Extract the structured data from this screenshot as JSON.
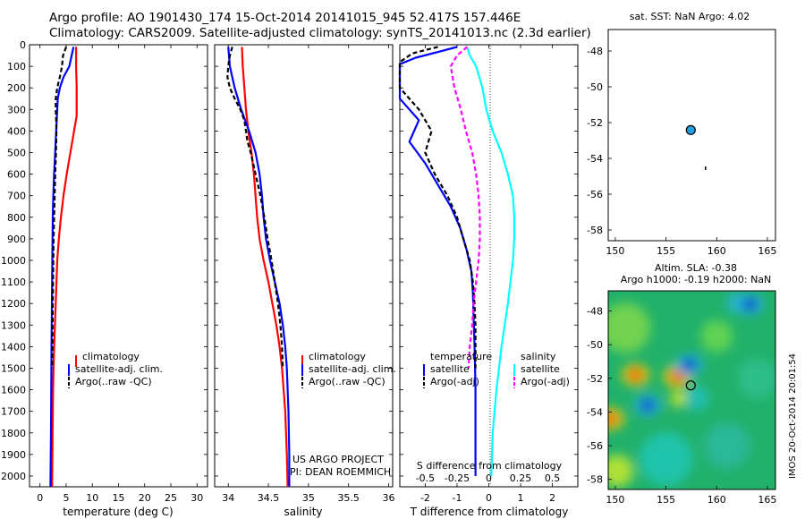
{
  "title_line1": "Argo profile: AO 1901430_174 15-Oct-2014 20141015_945 52.417S 157.446E",
  "title_line2": "Climatology: CARS2009. Satellite-adjusted climatology: synTS_20141013.nc (2.3d earlier)",
  "colors": {
    "climatology": "#ff0000",
    "satellite": "#0000ff",
    "argo": "#000000",
    "sat_diff": "#00ffff",
    "argo_diff": "#ff00ff"
  },
  "panels": {
    "temperature": {
      "xlabel": "temperature (deg C)",
      "legend": [
        "climatology",
        "satellite-adj. clim.",
        "Argo(..raw -QC)"
      ]
    },
    "salinity": {
      "xlabel": "salinity",
      "legend": [
        "climatology",
        "satellite-adj. clim.",
        "Argo(..raw -QC)"
      ],
      "annotation1": "US ARGO PROJECT",
      "annotation2": "PI: DEAN ROEMMICH"
    },
    "difference": {
      "top_label": "S difference from climatology",
      "xlabel": "T difference from climatology",
      "legend_temp_title": "temperature",
      "legend_sal_title": "salinity",
      "legend_items": [
        "satellite",
        "Argo(-adj)",
        "satellite",
        "Argo(-adj)"
      ]
    },
    "sst_map": {
      "title": "sat. SST: NaN Argo: 4.02"
    },
    "sla_map": {
      "title1": "Altim. SLA: -0.38",
      "title2": "Argo h1000: -0.19 h2000: NaN",
      "watermark": "IMOS 20-Oct-2014 20:01:54"
    }
  },
  "chart_data": [
    {
      "type": "line",
      "title": "",
      "xlabel": "temperature (deg C)",
      "ylabel": "",
      "xlim": [
        -2,
        32
      ],
      "ylim": [
        2050,
        0
      ],
      "y_reversed": true,
      "xticks": [
        0,
        5,
        10,
        15,
        20,
        25,
        30
      ],
      "yticks": [
        0,
        100,
        200,
        300,
        400,
        500,
        600,
        700,
        800,
        900,
        1000,
        1100,
        1200,
        1300,
        1400,
        1500,
        1600,
        1700,
        1800,
        1900,
        2000
      ],
      "series": [
        {
          "name": "climatology",
          "depth": [
            10,
            100,
            200,
            330,
            400,
            500,
            600,
            700,
            800,
            900,
            1000,
            1200,
            1400,
            1600,
            1800,
            2050
          ],
          "values": [
            6.9,
            6.9,
            7.0,
            7.0,
            6.5,
            5.8,
            5.1,
            4.5,
            4.0,
            3.6,
            3.3,
            3.0,
            2.7,
            2.5,
            2.4,
            2.3
          ]
        },
        {
          "name": "satellite-adj. clim.",
          "depth": [
            10,
            100,
            150,
            200,
            250,
            300,
            400,
            500,
            600,
            700,
            800,
            1000,
            1400,
            1800,
            2050
          ],
          "values": [
            6.4,
            5.6,
            4.5,
            3.8,
            3.4,
            3.3,
            3.1,
            2.9,
            2.7,
            2.55,
            2.45,
            2.35,
            2.2,
            2.1,
            2.0
          ]
        },
        {
          "name": "Argo(..raw -QC)",
          "depth": [
            10,
            50,
            100,
            150,
            200,
            250,
            300,
            350,
            400,
            500,
            600,
            700,
            800,
            900,
            1000,
            1100,
            1200,
            1300,
            1400,
            1500
          ],
          "values": [
            5.0,
            4.4,
            4.2,
            3.8,
            3.3,
            3.0,
            3.0,
            3.1,
            3.15,
            3.05,
            2.9,
            2.8,
            2.7,
            2.6,
            2.55,
            2.5,
            2.45,
            2.4,
            2.35,
            2.3
          ]
        }
      ]
    },
    {
      "type": "line",
      "title": "",
      "xlabel": "salinity",
      "ylabel": "",
      "xlim": [
        33.83,
        36.05
      ],
      "ylim": [
        2050,
        0
      ],
      "y_reversed": true,
      "xticks": [
        34,
        34.5,
        35,
        35.5,
        36
      ],
      "series": [
        {
          "name": "climatology",
          "depth": [
            10,
            100,
            200,
            300,
            400,
            500,
            600,
            700,
            800,
            900,
            1000,
            1100,
            1200,
            1300,
            1400,
            1500,
            1700,
            1900,
            2050
          ],
          "values": [
            34.17,
            34.18,
            34.2,
            34.22,
            34.25,
            34.29,
            34.32,
            34.34,
            34.36,
            34.39,
            34.44,
            34.5,
            34.55,
            34.6,
            34.64,
            34.67,
            34.71,
            34.73,
            34.74
          ]
        },
        {
          "name": "satellite-adj. clim.",
          "depth": [
            10,
            100,
            200,
            300,
            400,
            500,
            600,
            700,
            800,
            900,
            1000,
            1100,
            1200,
            1300,
            1400,
            1500,
            1600,
            1700,
            1900,
            2050
          ],
          "values": [
            34.0,
            34.02,
            34.08,
            34.16,
            34.26,
            34.34,
            34.39,
            34.42,
            34.44,
            34.47,
            34.52,
            34.58,
            34.64,
            34.68,
            34.71,
            34.73,
            34.74,
            34.75,
            34.76,
            34.76
          ]
        },
        {
          "name": "Argo(..raw -QC)",
          "depth": [
            10,
            50,
            100,
            150,
            200,
            250,
            300,
            350,
            400,
            450,
            500,
            550,
            600,
            700,
            800,
            900,
            1000,
            1100,
            1200,
            1300,
            1400,
            1500
          ],
          "values": [
            34.05,
            34.02,
            34.0,
            33.99,
            34.02,
            34.08,
            34.15,
            34.2,
            34.22,
            34.24,
            34.28,
            34.31,
            34.34,
            34.4,
            34.45,
            34.49,
            34.54,
            34.58,
            34.62,
            34.65,
            34.67,
            34.68
          ]
        }
      ]
    },
    {
      "type": "line",
      "title": "",
      "xlabel": "T difference from climatology",
      "top_label": "S difference from climatology",
      "xlim": [
        -2.8,
        2.8
      ],
      "ylim": [
        2050,
        0
      ],
      "y_reversed": true,
      "xticks": [
        -2,
        -1,
        0,
        1,
        2
      ],
      "xticks_salinity": [
        -0.5,
        -0.25,
        0,
        0.25,
        0.5
      ],
      "series": [
        {
          "name": "temperature satellite",
          "depth": [
            10,
            30,
            60,
            90,
            150,
            250,
            350,
            450,
            550,
            650,
            750,
            850,
            950,
            1050,
            1150,
            1250,
            1350,
            1450,
            1600,
            1800,
            2000
          ],
          "values": [
            -1.0,
            -1.5,
            -2.3,
            -2.8,
            -2.8,
            -2.8,
            -2.2,
            -2.5,
            -2.0,
            -1.6,
            -1.2,
            -0.9,
            -0.7,
            -0.55,
            -0.5,
            -0.48,
            -0.46,
            -0.44,
            -0.42,
            -0.42,
            -0.42
          ]
        },
        {
          "name": "temperature Argo(-adj)",
          "depth": [
            10,
            40,
            80,
            120,
            200,
            300,
            400,
            500,
            600,
            700,
            800,
            900,
            1000,
            1100,
            1200,
            1300,
            1400,
            1500
          ],
          "values": [
            -1.6,
            -2.4,
            -2.8,
            -2.8,
            -2.8,
            -2.2,
            -1.8,
            -2.0,
            -1.7,
            -1.3,
            -1.0,
            -0.8,
            -0.6,
            -0.5,
            -0.45,
            -0.42,
            -0.42,
            -0.42
          ]
        },
        {
          "name": "salinity satellite",
          "depth": [
            10,
            50,
            100,
            200,
            300,
            400,
            500,
            600,
            700,
            800,
            900,
            1000,
            1200,
            1400,
            1600,
            1800,
            2000
          ],
          "values": [
            -0.17,
            -0.15,
            -0.1,
            -0.05,
            -0.02,
            0.03,
            0.1,
            0.15,
            0.19,
            0.2,
            0.2,
            0.19,
            0.15,
            0.1,
            0.06,
            0.03,
            0.02
          ]
        },
        {
          "name": "salinity Argo(-adj)",
          "depth": [
            10,
            50,
            100,
            200,
            300,
            400,
            500,
            600,
            700,
            800,
            900,
            1000,
            1100,
            1200,
            1300,
            1400,
            1500
          ],
          "values": [
            -0.17,
            -0.25,
            -0.3,
            -0.27,
            -0.22,
            -0.18,
            -0.13,
            -0.1,
            -0.08,
            -0.07,
            -0.07,
            -0.08,
            -0.1,
            -0.12,
            -0.13,
            -0.15,
            -0.16
          ]
        }
      ]
    },
    {
      "type": "scatter",
      "title": "sat. SST: NaN Argo: 4.02",
      "xlim": [
        149.3,
        165.8
      ],
      "ylim": [
        -58.6,
        -46.8
      ],
      "xticks": [
        150,
        155,
        160,
        165
      ],
      "yticks": [
        -48,
        -50,
        -52,
        -54,
        -56,
        -58
      ],
      "points": [
        {
          "name": "Argo position",
          "lon": 157.446,
          "lat": -52.417
        }
      ],
      "track": [
        {
          "lon": 158.9,
          "lat": -54.45
        },
        {
          "lon": 158.9,
          "lat": -54.65
        }
      ]
    },
    {
      "type": "heatmap",
      "title": "Altim. SLA: -0.38",
      "subtitle": "Argo h1000: -0.19 h2000: NaN",
      "xlim": [
        149.3,
        165.8
      ],
      "ylim": [
        -58.6,
        -46.8
      ],
      "xticks": [
        150,
        155,
        160,
        165
      ],
      "yticks": [
        -48,
        -50,
        -52,
        -54,
        -56,
        -58
      ],
      "points": [
        {
          "name": "Argo position",
          "lon": 157.446,
          "lat": -52.417
        }
      ],
      "features": [
        {
          "type": "high",
          "lon": 156.1,
          "lat": -51.9
        },
        {
          "type": "high",
          "lon": 152.0,
          "lat": -51.8
        },
        {
          "type": "low",
          "lon": 153.2,
          "lat": -53.6
        },
        {
          "type": "low",
          "lon": 157.3,
          "lat": -51.2
        },
        {
          "type": "high",
          "lon": 149.5,
          "lat": -54.4
        },
        {
          "type": "low",
          "lon": 163.3,
          "lat": -47.6
        }
      ]
    }
  ]
}
